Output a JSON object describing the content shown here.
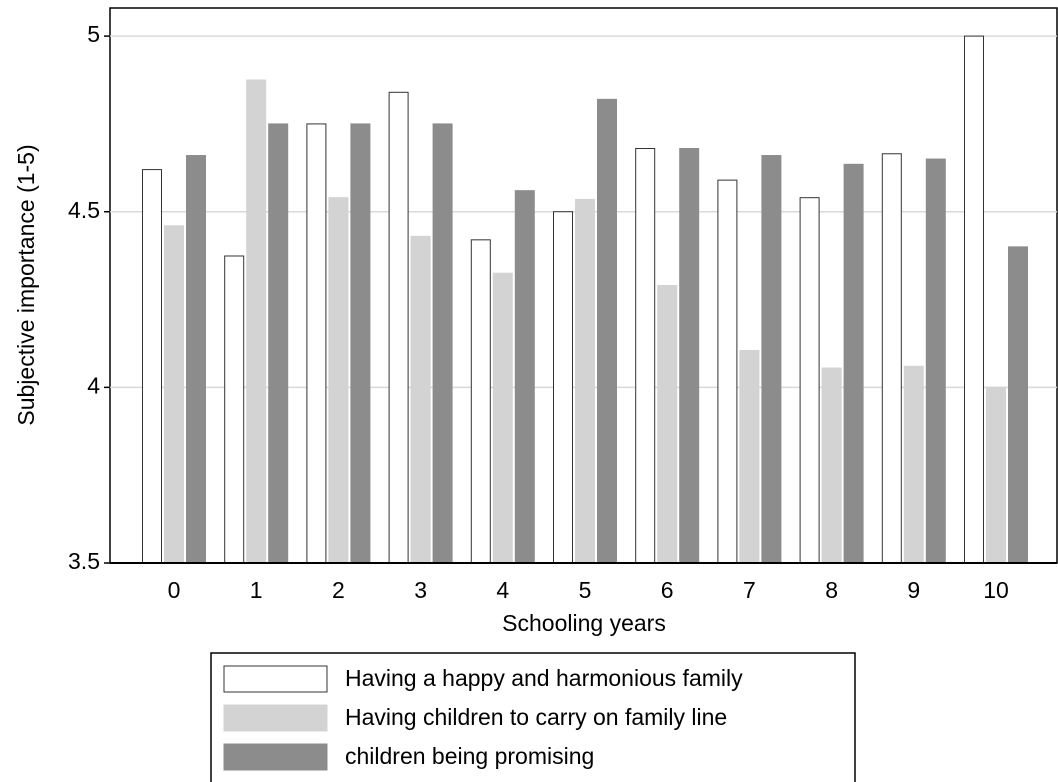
{
  "chart_data": {
    "type": "bar",
    "x_label": "Schooling years",
    "y_label": "Subjective importance (1-5)",
    "categories": [
      "0",
      "1",
      "2",
      "3",
      "4",
      "5",
      "6",
      "7",
      "8",
      "9",
      "10"
    ],
    "series": [
      {
        "name": "Having a happy and harmonious family",
        "color": "#ffffff",
        "values": [
          4.62,
          4.374,
          4.75,
          4.84,
          4.42,
          4.5,
          4.68,
          4.59,
          4.54,
          4.665,
          5.0
        ]
      },
      {
        "name": "Having children to carry on family line",
        "color": "#d3d3d3",
        "values": [
          4.46,
          4.875,
          4.54,
          4.43,
          4.325,
          4.535,
          4.29,
          4.105,
          4.055,
          4.06,
          4.0
        ]
      },
      {
        "name": "children being promising",
        "color": "#8c8c8c",
        "values": [
          4.66,
          4.75,
          4.75,
          4.75,
          4.56,
          4.82,
          4.68,
          4.66,
          4.635,
          4.65,
          4.4
        ]
      }
    ],
    "ylim": [
      3.5,
      5.08
    ],
    "yticks": [
      3.5,
      4,
      4.5,
      5
    ],
    "grid": true,
    "legend": "bottom"
  }
}
